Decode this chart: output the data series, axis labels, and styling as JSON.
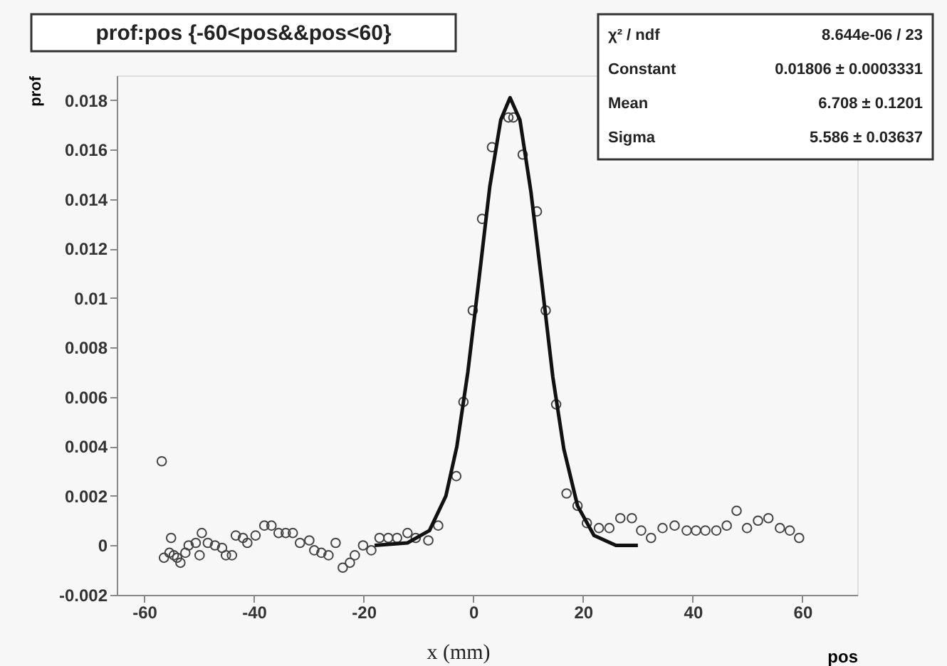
{
  "chart_data": {
    "type": "scatter",
    "title": "prof:pos {-60<pos&&pos<60}",
    "xlabel": "pos",
    "ylabel": "prof",
    "annotations": [
      "x (mm)",
      "χ² / ndf",
      "8.644e-06 / 23",
      "Constant",
      "0.01806 ± 0.0003331",
      "Mean",
      "6.708 ± 0.1201",
      "Sigma",
      "5.586 ± 0.03637"
    ],
    "xlim": [
      -65,
      70
    ],
    "xticks": [
      -60,
      -40,
      -20,
      0,
      20,
      40,
      60
    ],
    "ylim": [
      -0.002,
      0.019
    ],
    "yticks": [
      -0.002,
      0,
      0.002,
      0.004,
      0.006,
      0.008,
      0.01,
      0.012,
      0.014,
      0.016,
      0.018
    ],
    "grid": false,
    "series": [
      {
        "marker": "circle",
        "color": "#444444",
        "x": [
          -56.8,
          -56.4,
          -55.4,
          -55.1,
          -54.6,
          -54.0,
          -53.4,
          -52.5,
          -51.9,
          -50.6,
          -49.9,
          -49.5,
          -48.4,
          -47.1,
          -45.8,
          -45.1,
          -44.0,
          -43.3,
          -42.0,
          -41.2,
          -39.7,
          -38.1,
          -36.8,
          -35.5,
          -34.2,
          -32.9,
          -31.6,
          -29.9,
          -29.0,
          -27.7,
          -26.4,
          -25.1,
          -23.8,
          -22.5,
          -21.6,
          -20.1,
          -18.6,
          -17.1,
          -15.5,
          -13.9,
          -12.0,
          -10.5,
          -8.2,
          -6.4,
          -3.1,
          -1.8,
          -0.1,
          1.6,
          3.4,
          6.4,
          7.3,
          9.0,
          11.6,
          13.2,
          15.1,
          17.0,
          19.0,
          20.7,
          22.9,
          24.8,
          26.8,
          28.9,
          30.6,
          32.4,
          34.5,
          36.7,
          38.9,
          40.6,
          42.3,
          44.3,
          46.2,
          48.0,
          49.9,
          51.9,
          53.8,
          55.9,
          57.7,
          59.4
        ],
        "values": [
          0.0034,
          -0.0005,
          -0.0003,
          0.0003,
          -0.0004,
          -0.0005,
          -0.0007,
          -0.0003,
          0.0,
          0.0001,
          -0.0004,
          0.0005,
          0.0001,
          0.0,
          -0.0001,
          -0.0004,
          -0.0004,
          0.0004,
          0.0003,
          0.0001,
          0.0004,
          0.0008,
          0.0008,
          0.0005,
          0.0005,
          0.0005,
          0.0001,
          0.0002,
          -0.0002,
          -0.0003,
          -0.0004,
          0.0001,
          -0.0009,
          -0.0007,
          -0.0004,
          0.0,
          -0.0002,
          0.0003,
          0.0003,
          0.0003,
          0.0005,
          0.0003,
          0.0002,
          0.0008,
          0.0028,
          0.0058,
          0.0095,
          0.0132,
          0.0161,
          0.0173,
          0.0173,
          0.0158,
          0.0135,
          0.0095,
          0.0057,
          0.0021,
          0.0016,
          0.0009,
          0.0007,
          0.0007,
          0.0011,
          0.0011,
          0.0006,
          0.0003,
          0.0007,
          0.0008,
          0.0006,
          0.0006,
          0.0006,
          0.0006,
          0.0008,
          0.0014,
          0.0007,
          0.001,
          0.0011,
          0.0007,
          0.0006,
          0.0003
        ]
      },
      {
        "type": "line",
        "color": "#111111",
        "x": [
          -18,
          -12,
          -8,
          -5,
          -3,
          -1,
          1,
          3,
          5,
          6.7,
          8.5,
          10.5,
          12.5,
          14.5,
          16.5,
          19,
          22,
          26,
          30
        ],
        "values": [
          0.0,
          0.0001,
          0.0006,
          0.002,
          0.004,
          0.007,
          0.0107,
          0.0145,
          0.0172,
          0.0181,
          0.0172,
          0.0143,
          0.0106,
          0.0068,
          0.0039,
          0.0016,
          0.0004,
          0.0,
          0.0
        ]
      }
    ]
  }
}
